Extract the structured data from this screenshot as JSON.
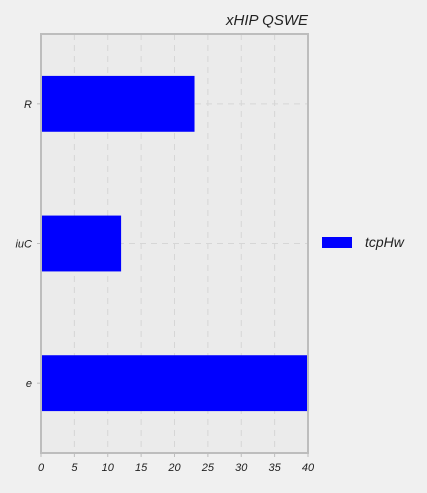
{
  "chart_data": {
    "type": "bar",
    "orientation": "horizontal",
    "title": "xHIP QSWE",
    "xlabel": "",
    "ylabel": "",
    "categories": [
      "R",
      "iuC",
      "e"
    ],
    "series": [
      {
        "name": "tcpHw",
        "values": [
          23,
          12,
          40
        ]
      }
    ],
    "xlim": [
      0,
      40
    ],
    "xticks": [
      0,
      5,
      10,
      15,
      20,
      25,
      30,
      35,
      40
    ],
    "grid": true,
    "legend_position": "right",
    "colors": {
      "bar": "#0000ff",
      "plot_background": "#ebebeb",
      "page_background": "#f0f0f0",
      "axis": "#bdbdbd",
      "grid": "#d6d6d6"
    }
  }
}
